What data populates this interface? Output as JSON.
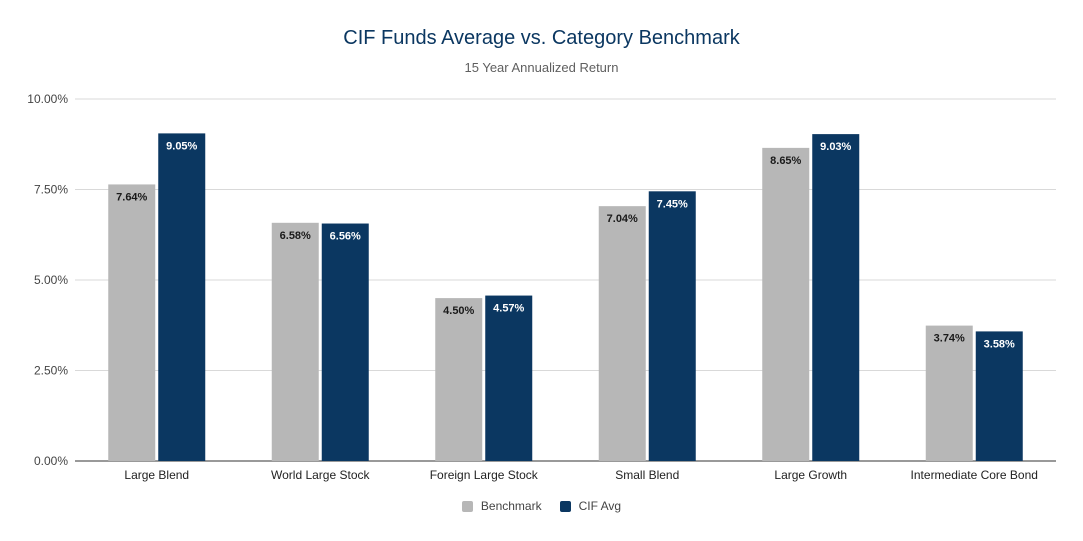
{
  "chart_data": {
    "type": "bar",
    "title": "CIF Funds Average vs. Category Benchmark",
    "subtitle": "15 Year Annualized Return",
    "xlabel": "",
    "ylabel": "",
    "categories": [
      "Large Blend",
      "World Large Stock",
      "Foreign Large Stock",
      "Small Blend",
      "Large Growth",
      "Intermediate Core Bond"
    ],
    "series": [
      {
        "name": "Benchmark",
        "values": [
          7.64,
          6.58,
          4.5,
          7.04,
          8.65,
          3.74
        ],
        "labels": [
          "7.64%",
          "6.58%",
          "4.50%",
          "7.04%",
          "8.65%",
          "3.74%"
        ],
        "color": "#b7b7b7",
        "label_color": "#1a1a1a"
      },
      {
        "name": "CIF Avg",
        "values": [
          9.05,
          6.56,
          4.57,
          7.45,
          9.03,
          3.58
        ],
        "labels": [
          "9.05%",
          "6.56%",
          "4.57%",
          "7.45%",
          "9.03%",
          "3.58%"
        ],
        "color": "#0b3761",
        "label_color": "#ffffff"
      }
    ],
    "ylim": [
      0,
      10
    ],
    "yticks": [
      0,
      2.5,
      5,
      7.5,
      10
    ],
    "ytick_labels": [
      "0.00%",
      "2.50%",
      "5.00%",
      "7.50%",
      "10.00%"
    ],
    "grid": true,
    "legend_position": "bottom-center"
  }
}
